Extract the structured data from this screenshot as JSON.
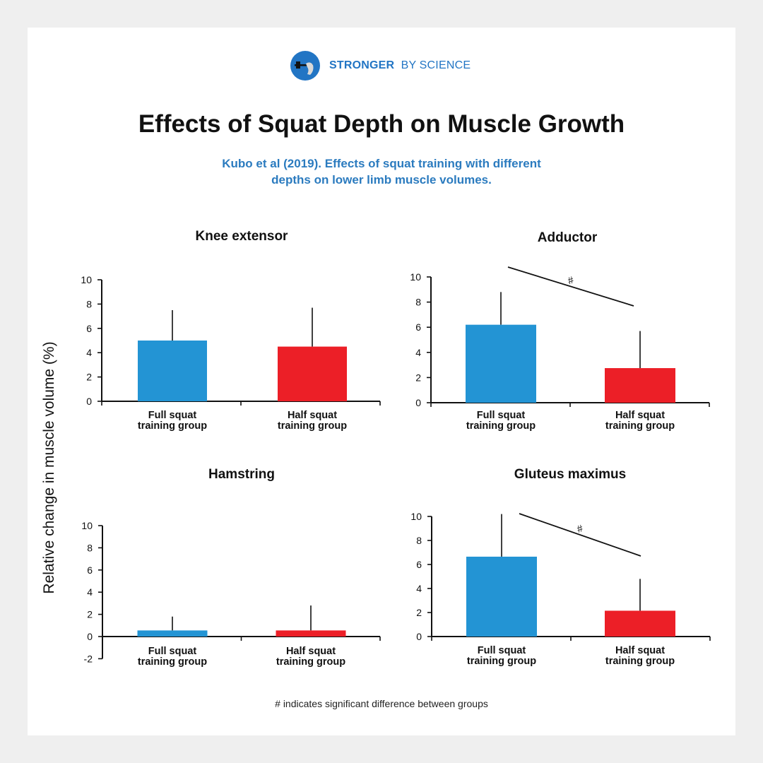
{
  "brand": {
    "name_bold": "STRONGER",
    "name_rest": "BY SCIENCE",
    "color": "#2275c4"
  },
  "title": "Effects of Squat Depth on Muscle Growth",
  "subtitle_line1": "Kubo et al (2019). Effects of squat training with different",
  "subtitle_line2": "depths on lower limb muscle volumes.",
  "footnote": "# indicates significant difference between groups",
  "colors": {
    "full": "#2394d4",
    "half": "#ec1f27"
  },
  "chart_data": [
    {
      "type": "bar",
      "title": "Knee extensor",
      "ylabel": "Relative change in muscle volume (%)",
      "categories": [
        "Full squat training group",
        "Half squat training group"
      ],
      "category_lines": [
        [
          "Full squat",
          "training group"
        ],
        [
          "Half squat",
          "training group"
        ]
      ],
      "values": [
        5.0,
        4.5
      ],
      "error_upper": [
        7.5,
        7.7
      ],
      "ylim": [
        0,
        10
      ],
      "yticks": [
        0,
        2,
        4,
        6,
        8,
        10
      ],
      "significant": false
    },
    {
      "type": "bar",
      "title": "Adductor",
      "ylabel": "Relative change in muscle volume (%)",
      "categories": [
        "Full squat training group",
        "Half squat training group"
      ],
      "category_lines": [
        [
          "Full squat",
          "training group"
        ],
        [
          "Half squat",
          "training group"
        ]
      ],
      "values": [
        6.2,
        2.75
      ],
      "error_upper": [
        8.8,
        5.7
      ],
      "ylim": [
        0,
        10
      ],
      "yticks": [
        0,
        2,
        4,
        6,
        8,
        10
      ],
      "significant": true,
      "significance_marker": "#"
    },
    {
      "type": "bar",
      "title": "Hamstring",
      "ylabel": "Relative change in muscle volume (%)",
      "categories": [
        "Full squat training group",
        "Half squat training group"
      ],
      "category_lines": [
        [
          "Full squat",
          "training group"
        ],
        [
          "Half squat",
          "training group"
        ]
      ],
      "values": [
        0.55,
        0.55
      ],
      "error_upper": [
        1.8,
        2.8
      ],
      "ylim": [
        -2,
        10
      ],
      "yticks": [
        -2,
        0,
        2,
        4,
        6,
        8,
        10
      ],
      "significant": false
    },
    {
      "type": "bar",
      "title": "Gluteus maximus",
      "ylabel": "Relative change in muscle volume (%)",
      "categories": [
        "Full squat training group",
        "Half squat training group"
      ],
      "category_lines": [
        [
          "Full squat",
          "training group"
        ],
        [
          "Half squat",
          "training group"
        ]
      ],
      "values": [
        6.65,
        2.15
      ],
      "error_upper": [
        10.2,
        4.8
      ],
      "ylim": [
        0,
        10
      ],
      "yticks": [
        0,
        2,
        4,
        6,
        8,
        10
      ],
      "significant": true,
      "significance_marker": "#"
    }
  ]
}
